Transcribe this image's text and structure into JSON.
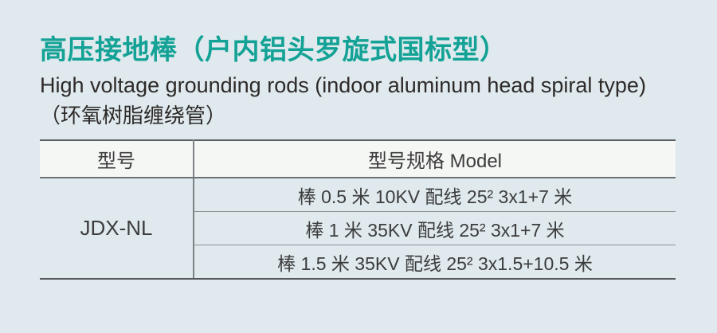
{
  "page": {
    "background_color": "#dfe9ee",
    "accent_color": "#13a295",
    "header_row_color": "#f5f7f5",
    "text_color": "#3c3c3c"
  },
  "header": {
    "title_zh": "高压接地棒（户内铝头罗旋式国标型）",
    "title_en": "High voltage grounding rods (indoor aluminum head spiral type)",
    "subtitle_zh": "（环氧树脂缠绕管）"
  },
  "table": {
    "columns": [
      {
        "label": "型号"
      },
      {
        "label": "型号规格 Model"
      }
    ],
    "model": "JDX-NL",
    "rows": [
      {
        "spec": "棒 0.5 米 10KV 配线 25² 3x1+7 米"
      },
      {
        "spec": "棒 1 米 35KV 配线 25² 3x1+7 米"
      },
      {
        "spec": "棒 1.5 米 35KV 配线 25² 3x1.5+10.5 米"
      }
    ]
  }
}
